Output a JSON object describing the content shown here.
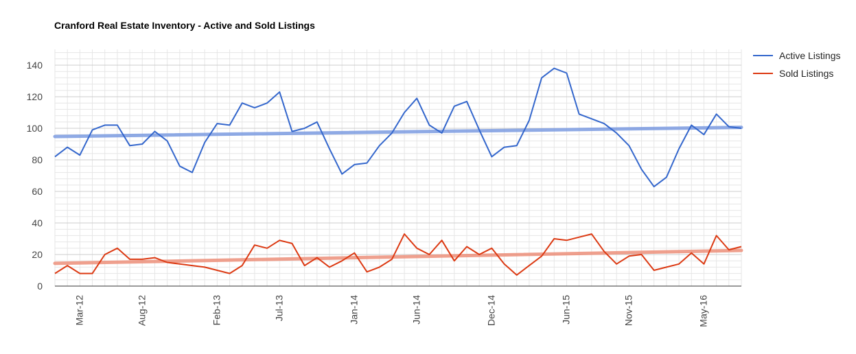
{
  "chart_data": {
    "type": "line",
    "title": "Cranford Real Estate Inventory - Active and Sold Listings",
    "xlabel": "",
    "ylabel": "",
    "ylim": [
      0,
      150
    ],
    "yticks": [
      0,
      20,
      40,
      60,
      80,
      100,
      120,
      140
    ],
    "x_tick_labels": [
      "Mar-12",
      "Aug-12",
      "Feb-13",
      "Jul-13",
      "Jan-14",
      "Jun-14",
      "Dec-14",
      "Jun-15",
      "Nov-15",
      "May-16"
    ],
    "x_start": "Jan-12",
    "x_end": "Sep-16",
    "grid": true,
    "legend_position": "right",
    "series": [
      {
        "name": "Active Listings",
        "color": "#3366cc",
        "trendline_color": "#7b9be0",
        "values": [
          82,
          88,
          83,
          99,
          102,
          102,
          89,
          90,
          98,
          92,
          76,
          72,
          91,
          103,
          102,
          116,
          113,
          116,
          123,
          98,
          100,
          104,
          87,
          71,
          77,
          78,
          89,
          97,
          110,
          119,
          102,
          97,
          114,
          117,
          99,
          82,
          88,
          89,
          105,
          132,
          138,
          135,
          109,
          106,
          103,
          97,
          89,
          74,
          63,
          69,
          87,
          102,
          96,
          109,
          101,
          100
        ],
        "trendline": [
          94.8,
          100.6
        ]
      },
      {
        "name": "Sold Listings",
        "color": "#dc3912",
        "trendline_color": "#ec8f7a",
        "values": [
          8,
          13,
          8,
          8,
          20,
          24,
          17,
          17,
          18,
          15,
          14,
          13,
          12,
          10,
          8,
          13,
          26,
          24,
          29,
          27,
          13,
          18,
          12,
          16,
          21,
          9,
          12,
          17,
          33,
          24,
          20,
          29,
          16,
          25,
          20,
          24,
          14,
          7,
          13,
          19,
          30,
          29,
          31,
          33,
          22,
          14,
          19,
          20,
          10,
          12,
          14,
          21,
          14,
          32,
          23,
          25
        ],
        "trendline": [
          14.4,
          22.6
        ]
      }
    ]
  }
}
